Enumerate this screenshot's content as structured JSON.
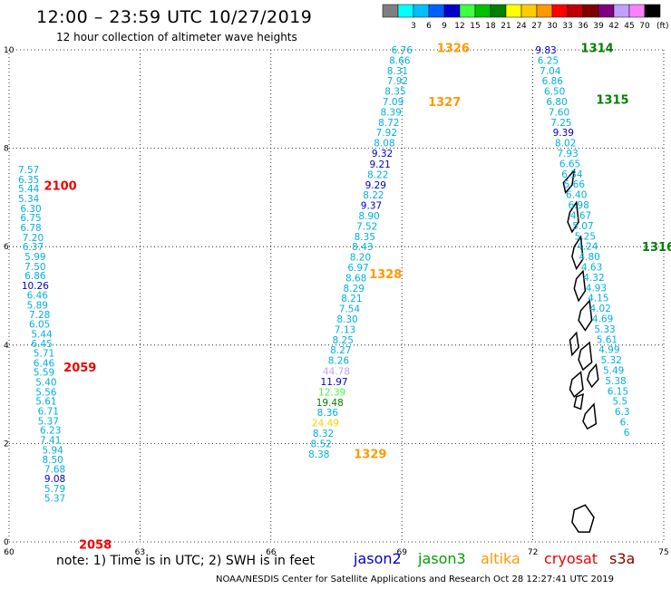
{
  "header": {
    "title": "12:00 – 23:59 UTC 10/27/2019",
    "subtitle": "12 hour collection of altimeter wave heights"
  },
  "color_legend": {
    "unit": "(ft)",
    "items": [
      {
        "label": "",
        "color": "#7f7f7f"
      },
      {
        "label": "3",
        "color": "#00ffff"
      },
      {
        "label": "6",
        "color": "#00bfff"
      },
      {
        "label": "9",
        "color": "#0060ff"
      },
      {
        "label": "12",
        "color": "#0000cc"
      },
      {
        "label": "15",
        "color": "#40ff40"
      },
      {
        "label": "18",
        "color": "#00c000"
      },
      {
        "label": "21",
        "color": "#008000"
      },
      {
        "label": "24",
        "color": "#ffff00"
      },
      {
        "label": "27",
        "color": "#ffcc00"
      },
      {
        "label": "30",
        "color": "#ff9900"
      },
      {
        "label": "33",
        "color": "#ff0000"
      },
      {
        "label": "36",
        "color": "#c00000"
      },
      {
        "label": "39",
        "color": "#800000"
      },
      {
        "label": "42",
        "color": "#800080"
      },
      {
        "label": "45",
        "color": "#c0a0ff"
      },
      {
        "label": "70",
        "color": "#ff80ff"
      },
      {
        "label": "",
        "color": "#000000"
      }
    ]
  },
  "axes": {
    "x_ticks": [
      "60",
      "63",
      "66",
      "69",
      "72",
      "75"
    ],
    "y_ticks": [
      "0",
      "2",
      "4",
      "6",
      "8",
      "10"
    ]
  },
  "footer": {
    "note": "note:  1) Time is in UTC;  2) SWH is in feet",
    "credit": "NOAA/NESDIS Center for Satellite Applications and Research    Oct 28 12:27:41 UTC 2019"
  },
  "satellites": [
    {
      "name": "jason2",
      "color": "#0000cc"
    },
    {
      "name": "jason3",
      "color": "#00a000"
    },
    {
      "name": "altika",
      "color": "#ff9900"
    },
    {
      "name": "cryosat",
      "color": "#ee0000"
    },
    {
      "name": "s3a",
      "color": "#800000"
    }
  ],
  "track_labels": [
    {
      "text": "2100",
      "color": "#ee0000",
      "lon": 60.8,
      "lat": 7.25
    },
    {
      "text": "2059",
      "color": "#ee0000",
      "lon": 61.25,
      "lat": 3.55
    },
    {
      "text": "2058",
      "color": "#ee0000",
      "lon": 61.6,
      "lat": -0.05
    },
    {
      "text": "1326",
      "color": "#ff9900",
      "lon": 69.8,
      "lat": 10.05
    },
    {
      "text": "1327",
      "color": "#ff9900",
      "lon": 69.6,
      "lat": 8.95
    },
    {
      "text": "1328",
      "color": "#ff9900",
      "lon": 68.25,
      "lat": 5.45
    },
    {
      "text": "1329",
      "color": "#ff9900",
      "lon": 67.9,
      "lat": 1.8
    },
    {
      "text": "1314",
      "color": "#008000",
      "lon": 73.1,
      "lat": 10.05
    },
    {
      "text": "1315",
      "color": "#008000",
      "lon": 73.45,
      "lat": 9.0
    },
    {
      "text": "1316",
      "color": "#008000",
      "lon": 74.5,
      "lat": 6.0
    }
  ],
  "chart_data": {
    "type": "scatter",
    "title": "12:00 – 23:59 UTC 10/27/2019",
    "subtitle": "12 hour collection of altimeter wave heights",
    "xlim": [
      60,
      75
    ],
    "ylim": [
      0,
      10
    ],
    "grid": true,
    "tracks": [
      {
        "name": "cryosat track 2100/2059/2058",
        "color": "#00b0e0",
        "points": [
          {
            "lon": 60.45,
            "lat": 7.57,
            "v": "7.57"
          },
          {
            "lon": 60.45,
            "lat": 7.37,
            "v": "6.35"
          },
          {
            "lon": 60.45,
            "lat": 7.18,
            "v": "5.44"
          },
          {
            "lon": 60.45,
            "lat": 6.98,
            "v": "5.34"
          },
          {
            "lon": 60.5,
            "lat": 6.78,
            "v": "6.30"
          },
          {
            "lon": 60.5,
            "lat": 6.59,
            "v": "6.75"
          },
          {
            "lon": 60.5,
            "lat": 6.39,
            "v": "6.78"
          },
          {
            "lon": 60.55,
            "lat": 6.19,
            "v": "7.20"
          },
          {
            "lon": 60.55,
            "lat": 6.0,
            "v": "6.37"
          },
          {
            "lon": 60.6,
            "lat": 5.8,
            "v": "5.99"
          },
          {
            "lon": 60.6,
            "lat": 5.6,
            "v": "7.50"
          },
          {
            "lon": 60.6,
            "lat": 5.41,
            "v": "6.86"
          },
          {
            "lon": 60.6,
            "lat": 5.21,
            "v": "10.26",
            "c": "#0000cc"
          },
          {
            "lon": 60.65,
            "lat": 5.02,
            "v": "6.46"
          },
          {
            "lon": 60.65,
            "lat": 4.82,
            "v": "5.89"
          },
          {
            "lon": 60.7,
            "lat": 4.62,
            "v": "7.28"
          },
          {
            "lon": 60.7,
            "lat": 4.43,
            "v": "6.05"
          },
          {
            "lon": 60.75,
            "lat": 4.23,
            "v": "5.44"
          },
          {
            "lon": 60.75,
            "lat": 4.03,
            "v": "6.45"
          },
          {
            "lon": 60.8,
            "lat": 3.84,
            "v": "5.71"
          },
          {
            "lon": 60.8,
            "lat": 3.64,
            "v": "6.46"
          },
          {
            "lon": 60.8,
            "lat": 3.45,
            "v": "5.59"
          },
          {
            "lon": 60.85,
            "lat": 3.25,
            "v": "5.40"
          },
          {
            "lon": 60.85,
            "lat": 3.05,
            "v": "5.56"
          },
          {
            "lon": 60.85,
            "lat": 2.86,
            "v": "5.61"
          },
          {
            "lon": 60.9,
            "lat": 2.66,
            "v": "6.71"
          },
          {
            "lon": 60.9,
            "lat": 2.46,
            "v": "5.37"
          },
          {
            "lon": 60.95,
            "lat": 2.27,
            "v": "6.23"
          },
          {
            "lon": 60.95,
            "lat": 2.07,
            "v": "7.41"
          },
          {
            "lon": 61.0,
            "lat": 1.87,
            "v": "5.94"
          },
          {
            "lon": 61.0,
            "lat": 1.68,
            "v": "8.50"
          },
          {
            "lon": 61.05,
            "lat": 1.48,
            "v": "7.68"
          },
          {
            "lon": 61.05,
            "lat": 1.29,
            "v": "9.08",
            "c": "#0000cc"
          },
          {
            "lon": 61.05,
            "lat": 1.09,
            "v": "5.79"
          },
          {
            "lon": 61.05,
            "lat": 0.89,
            "v": "5.37"
          }
        ]
      },
      {
        "name": "altika track 1326-1329",
        "color": "#00b0e0",
        "points": [
          {
            "lon": 69.0,
            "lat": 10.0,
            "v": "6.76"
          },
          {
            "lon": 68.95,
            "lat": 9.79,
            "v": "8.66"
          },
          {
            "lon": 68.9,
            "lat": 9.58,
            "v": "8.31"
          },
          {
            "lon": 68.9,
            "lat": 9.37,
            "v": "7.92"
          },
          {
            "lon": 68.85,
            "lat": 9.16,
            "v": "8.35"
          },
          {
            "lon": 68.8,
            "lat": 8.95,
            "v": "7.09"
          },
          {
            "lon": 68.75,
            "lat": 8.74,
            "v": "8.39"
          },
          {
            "lon": 68.7,
            "lat": 8.53,
            "v": "8.72"
          },
          {
            "lon": 68.65,
            "lat": 8.32,
            "v": "7.92"
          },
          {
            "lon": 68.6,
            "lat": 8.11,
            "v": "8.08"
          },
          {
            "lon": 68.55,
            "lat": 7.9,
            "v": "9.32",
            "c": "#0000cc"
          },
          {
            "lon": 68.5,
            "lat": 7.68,
            "v": "9.21",
            "c": "#0000cc"
          },
          {
            "lon": 68.45,
            "lat": 7.47,
            "v": "8.22"
          },
          {
            "lon": 68.4,
            "lat": 7.26,
            "v": "9.29",
            "c": "#0000cc"
          },
          {
            "lon": 68.35,
            "lat": 7.05,
            "v": "8.22"
          },
          {
            "lon": 68.3,
            "lat": 6.84,
            "v": "9.37",
            "c": "#0000cc"
          },
          {
            "lon": 68.25,
            "lat": 6.63,
            "v": "8.90"
          },
          {
            "lon": 68.2,
            "lat": 6.42,
            "v": "7.52"
          },
          {
            "lon": 68.15,
            "lat": 6.21,
            "v": "8.35"
          },
          {
            "lon": 68.1,
            "lat": 6.0,
            "v": "8.43"
          },
          {
            "lon": 68.05,
            "lat": 5.79,
            "v": "8.20"
          },
          {
            "lon": 68.0,
            "lat": 5.58,
            "v": "6.97"
          },
          {
            "lon": 67.95,
            "lat": 5.37,
            "v": "8.68"
          },
          {
            "lon": 67.9,
            "lat": 5.16,
            "v": "8.29"
          },
          {
            "lon": 67.85,
            "lat": 4.95,
            "v": "8.21"
          },
          {
            "lon": 67.8,
            "lat": 4.74,
            "v": "7.54"
          },
          {
            "lon": 67.75,
            "lat": 4.53,
            "v": "8.30"
          },
          {
            "lon": 67.7,
            "lat": 4.32,
            "v": "7.13"
          },
          {
            "lon": 67.65,
            "lat": 4.11,
            "v": "8.25"
          },
          {
            "lon": 67.6,
            "lat": 3.9,
            "v": "8.27"
          },
          {
            "lon": 67.55,
            "lat": 3.69,
            "v": "8.26"
          },
          {
            "lon": 67.5,
            "lat": 3.47,
            "v": "44.78",
            "c": "#c0a0ff"
          },
          {
            "lon": 67.45,
            "lat": 3.26,
            "v": "11.97",
            "c": "#0000cc"
          },
          {
            "lon": 67.4,
            "lat": 3.05,
            "v": "12.39",
            "c": "#40ff40"
          },
          {
            "lon": 67.35,
            "lat": 2.84,
            "v": "19.48",
            "c": "#008000"
          },
          {
            "lon": 67.3,
            "lat": 2.63,
            "v": "8.36"
          },
          {
            "lon": 67.25,
            "lat": 2.42,
            "v": "24.49",
            "c": "#ffcc00"
          },
          {
            "lon": 67.2,
            "lat": 2.21,
            "v": "8.32"
          },
          {
            "lon": 67.15,
            "lat": 2.0,
            "v": "8.52"
          },
          {
            "lon": 67.1,
            "lat": 1.79,
            "v": "8.38"
          }
        ]
      },
      {
        "name": "jason3 track 1314-1316",
        "color": "#00b0e0",
        "points": [
          {
            "lon": 72.3,
            "lat": 10.0,
            "v": "9.83",
            "c": "#0000cc"
          },
          {
            "lon": 72.35,
            "lat": 9.79,
            "v": "6.25"
          },
          {
            "lon": 72.4,
            "lat": 9.58,
            "v": "7.04"
          },
          {
            "lon": 72.45,
            "lat": 9.37,
            "v": "6.86"
          },
          {
            "lon": 72.5,
            "lat": 9.16,
            "v": "6.50"
          },
          {
            "lon": 72.55,
            "lat": 8.95,
            "v": "6.80"
          },
          {
            "lon": 72.6,
            "lat": 8.74,
            "v": "7.60"
          },
          {
            "lon": 72.65,
            "lat": 8.53,
            "v": "7.25"
          },
          {
            "lon": 72.7,
            "lat": 8.32,
            "v": "9.39",
            "c": "#0000cc"
          },
          {
            "lon": 72.75,
            "lat": 8.11,
            "v": "8.02"
          },
          {
            "lon": 72.8,
            "lat": 7.9,
            "v": "7.93"
          },
          {
            "lon": 72.85,
            "lat": 7.69,
            "v": "6.65"
          },
          {
            "lon": 72.9,
            "lat": 7.48,
            "v": "6.34"
          },
          {
            "lon": 72.95,
            "lat": 7.27,
            "v": "5.66"
          },
          {
            "lon": 73.0,
            "lat": 7.06,
            "v": "6.40"
          },
          {
            "lon": 73.05,
            "lat": 6.85,
            "v": "6.98"
          },
          {
            "lon": 73.1,
            "lat": 6.64,
            "v": "4.67"
          },
          {
            "lon": 73.15,
            "lat": 6.43,
            "v": "5.07"
          },
          {
            "lon": 73.2,
            "lat": 6.22,
            "v": "5.25"
          },
          {
            "lon": 73.25,
            "lat": 6.01,
            "v": "4.24"
          },
          {
            "lon": 73.3,
            "lat": 5.8,
            "v": "4.80"
          },
          {
            "lon": 73.35,
            "lat": 5.59,
            "v": "4.63"
          },
          {
            "lon": 73.4,
            "lat": 5.38,
            "v": "4.32"
          },
          {
            "lon": 73.45,
            "lat": 5.17,
            "v": "4.93"
          },
          {
            "lon": 73.5,
            "lat": 4.96,
            "v": "4.15"
          },
          {
            "lon": 73.55,
            "lat": 4.75,
            "v": "4.02"
          },
          {
            "lon": 73.6,
            "lat": 4.54,
            "v": "4.69"
          },
          {
            "lon": 73.65,
            "lat": 4.33,
            "v": "5.33"
          },
          {
            "lon": 73.7,
            "lat": 4.12,
            "v": "5.61"
          },
          {
            "lon": 73.75,
            "lat": 3.91,
            "v": "4.99"
          },
          {
            "lon": 73.8,
            "lat": 3.7,
            "v": "5.32"
          },
          {
            "lon": 73.85,
            "lat": 3.49,
            "v": "5.49"
          },
          {
            "lon": 73.9,
            "lat": 3.28,
            "v": "5.38"
          },
          {
            "lon": 73.95,
            "lat": 3.07,
            "v": "6.15"
          },
          {
            "lon": 74.0,
            "lat": 2.86,
            "v": "5.5"
          },
          {
            "lon": 74.05,
            "lat": 2.65,
            "v": "6.3"
          },
          {
            "lon": 74.1,
            "lat": 2.44,
            "v": "6."
          },
          {
            "lon": 74.15,
            "lat": 2.23,
            "v": "6"
          }
        ]
      }
    ]
  },
  "islands": [
    [
      [
        72.8,
        7.4
      ],
      [
        72.95,
        7.55
      ],
      [
        72.9,
        7.25
      ],
      [
        72.75,
        7.1
      ],
      [
        72.7,
        7.3
      ]
    ],
    [
      [
        72.85,
        6.7
      ],
      [
        73.0,
        6.9
      ],
      [
        73.05,
        6.5
      ],
      [
        72.9,
        6.3
      ],
      [
        72.8,
        6.5
      ]
    ],
    [
      [
        72.95,
        6.0
      ],
      [
        73.1,
        6.2
      ],
      [
        73.15,
        5.75
      ],
      [
        73.0,
        5.55
      ],
      [
        72.9,
        5.8
      ]
    ],
    [
      [
        73.0,
        5.35
      ],
      [
        73.15,
        5.5
      ],
      [
        73.2,
        5.1
      ],
      [
        73.05,
        4.9
      ],
      [
        72.95,
        5.15
      ]
    ],
    [
      [
        73.1,
        4.7
      ],
      [
        73.3,
        4.9
      ],
      [
        73.35,
        4.5
      ],
      [
        73.2,
        4.3
      ],
      [
        73.05,
        4.5
      ]
    ],
    [
      [
        72.85,
        4.1
      ],
      [
        73.0,
        4.25
      ],
      [
        73.05,
        3.95
      ],
      [
        72.9,
        3.8
      ]
    ],
    [
      [
        73.1,
        3.9
      ],
      [
        73.3,
        4.05
      ],
      [
        73.35,
        3.65
      ],
      [
        73.15,
        3.5
      ],
      [
        73.05,
        3.7
      ]
    ],
    [
      [
        73.3,
        3.45
      ],
      [
        73.45,
        3.6
      ],
      [
        73.5,
        3.3
      ],
      [
        73.35,
        3.15
      ],
      [
        73.25,
        3.3
      ]
    ],
    [
      [
        72.9,
        3.3
      ],
      [
        73.1,
        3.45
      ],
      [
        73.15,
        3.1
      ],
      [
        72.95,
        2.95
      ],
      [
        72.85,
        3.1
      ]
    ],
    [
      [
        73.2,
        2.6
      ],
      [
        73.4,
        2.8
      ],
      [
        73.45,
        2.4
      ],
      [
        73.25,
        2.3
      ],
      [
        73.15,
        2.45
      ]
    ],
    [
      [
        73.0,
        2.95
      ],
      [
        73.15,
        3.0
      ],
      [
        73.1,
        2.7
      ],
      [
        72.95,
        2.75
      ]
    ],
    [
      [
        72.95,
        0.65
      ],
      [
        73.2,
        0.75
      ],
      [
        73.4,
        0.5
      ],
      [
        73.3,
        0.2
      ],
      [
        73.05,
        0.2
      ],
      [
        72.9,
        0.4
      ]
    ]
  ]
}
